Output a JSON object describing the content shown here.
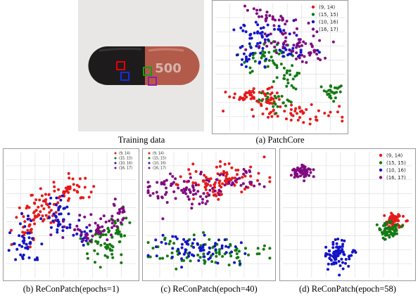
{
  "captions": {
    "training": "Training data",
    "a": "(a) PatchCore",
    "b": "(b) ReConPatch(epochs=1)",
    "c": "(c) ReConPatch(epoch=40)",
    "d": "(d) ReConPatch(epoch=58)"
  },
  "photo": {
    "pill_label": "500",
    "pill_colors": {
      "left": "#1e1b1c",
      "right": "#b25b4a",
      "background": "#e8e6e4"
    },
    "patch_markers": [
      {
        "patch": "(9, 14)",
        "color": "#e60000"
      },
      {
        "patch": "(10, 16)",
        "color": "#1030e0"
      },
      {
        "patch": "(15, 15)",
        "color": "#10a010"
      },
      {
        "patch": "(16, 17)",
        "color": "#9a1aa0"
      }
    ]
  },
  "legend": [
    {
      "label": "(9, 14)",
      "color": "#e61a1a"
    },
    {
      "label": "(15, 15)",
      "color": "#137a13"
    },
    {
      "label": "(10, 16)",
      "color": "#1414c8"
    },
    {
      "label": "(16, 17)",
      "color": "#800a80"
    }
  ],
  "chart_data": [
    {
      "type": "scatter",
      "panel": "(a) PatchCore",
      "xlim": [
        0,
        100
      ],
      "ylim": [
        0,
        100
      ],
      "grid": true,
      "legend_position": "top-right",
      "series": [
        {
          "name": "(9, 14)",
          "clusters": [
            [
              28,
              28,
              8,
              4,
              45
            ],
            [
              44,
              24,
              5,
              4,
              20
            ],
            [
              62,
              14,
              16,
              4,
              45
            ]
          ]
        },
        {
          "name": "(15, 15)",
          "clusters": [
            [
              40,
              57,
              11,
              6,
              45
            ],
            [
              46,
              24,
              6,
              4,
              20
            ],
            [
              60,
              42,
              6,
              4,
              20
            ],
            [
              91,
              30,
              5,
              3,
              25
            ]
          ]
        },
        {
          "name": "(10, 16)",
          "clusters": [
            [
              27,
              60,
              6,
              6,
              30
            ],
            [
              40,
              78,
              12,
              4,
              35
            ],
            [
              62,
              63,
              8,
              3,
              20
            ]
          ]
        },
        {
          "name": "(16, 17)",
          "clusters": [
            [
              42,
              90,
              10,
              3,
              30
            ],
            [
              58,
              70,
              12,
              5,
              40
            ],
            [
              72,
              58,
              6,
              4,
              20
            ]
          ]
        }
      ]
    },
    {
      "type": "scatter",
      "panel": "(b) ReConPatch(epochs=1)",
      "xlim": [
        0,
        100
      ],
      "ylim": [
        0,
        100
      ],
      "grid": true,
      "legend_position": "top-right",
      "series": [
        {
          "name": "(9, 14)",
          "clusters": [
            [
              28,
              55,
              8,
              7,
              55
            ],
            [
              48,
              70,
              10,
              6,
              40
            ],
            [
              17,
              40,
              4,
              6,
              20
            ]
          ]
        },
        {
          "name": "(15, 15)",
          "clusters": [
            [
              75,
              25,
              8,
              8,
              50
            ],
            [
              84,
              40,
              5,
              6,
              25
            ]
          ]
        },
        {
          "name": "(10, 16)",
          "clusters": [
            [
              15,
              30,
              6,
              10,
              40
            ],
            [
              40,
              48,
              6,
              10,
              40
            ],
            [
              60,
              32,
              5,
              4,
              15
            ]
          ]
        },
        {
          "name": "(16, 17)",
          "clusters": [
            [
              65,
              40,
              10,
              6,
              45
            ],
            [
              85,
              50,
              5,
              5,
              20
            ]
          ]
        }
      ]
    },
    {
      "type": "scatter",
      "panel": "(c) ReConPatch(epoch=40)",
      "xlim": [
        0,
        100
      ],
      "ylim": [
        0,
        100
      ],
      "grid": true,
      "legend_position": "top-left",
      "series": [
        {
          "name": "(9, 14)",
          "clusters": [
            [
              60,
              78,
              18,
              7,
              90
            ],
            [
              55,
              64,
              3,
              3,
              8
            ]
          ]
        },
        {
          "name": "(15, 15)",
          "clusters": [
            [
              50,
              20,
              25,
              6,
              80
            ]
          ]
        },
        {
          "name": "(10, 16)",
          "clusters": [
            [
              40,
              22,
              18,
              6,
              70
            ]
          ]
        },
        {
          "name": "(16, 17)",
          "clusters": [
            [
              30,
              70,
              16,
              7,
              80
            ],
            [
              70,
              76,
              14,
              5,
              30
            ]
          ]
        }
      ]
    },
    {
      "type": "scatter",
      "panel": "(d) ReConPatch(epoch=58)",
      "xlim": [
        0,
        100
      ],
      "ylim": [
        0,
        100
      ],
      "grid": true,
      "legend_position": "top-right",
      "series": [
        {
          "name": "(9, 14)",
          "clusters": [
            [
              85,
              45,
              4,
              3,
              60
            ]
          ]
        },
        {
          "name": "(15, 15)",
          "clusters": [
            [
              82,
              38,
              4,
              4,
              60
            ]
          ]
        },
        {
          "name": "(10, 16)",
          "clusters": [
            [
              43,
              18,
              5,
              5,
              80
            ]
          ]
        },
        {
          "name": "(16, 17)",
          "clusters": [
            [
              14,
              84,
              4,
              3,
              60
            ]
          ]
        }
      ]
    }
  ]
}
